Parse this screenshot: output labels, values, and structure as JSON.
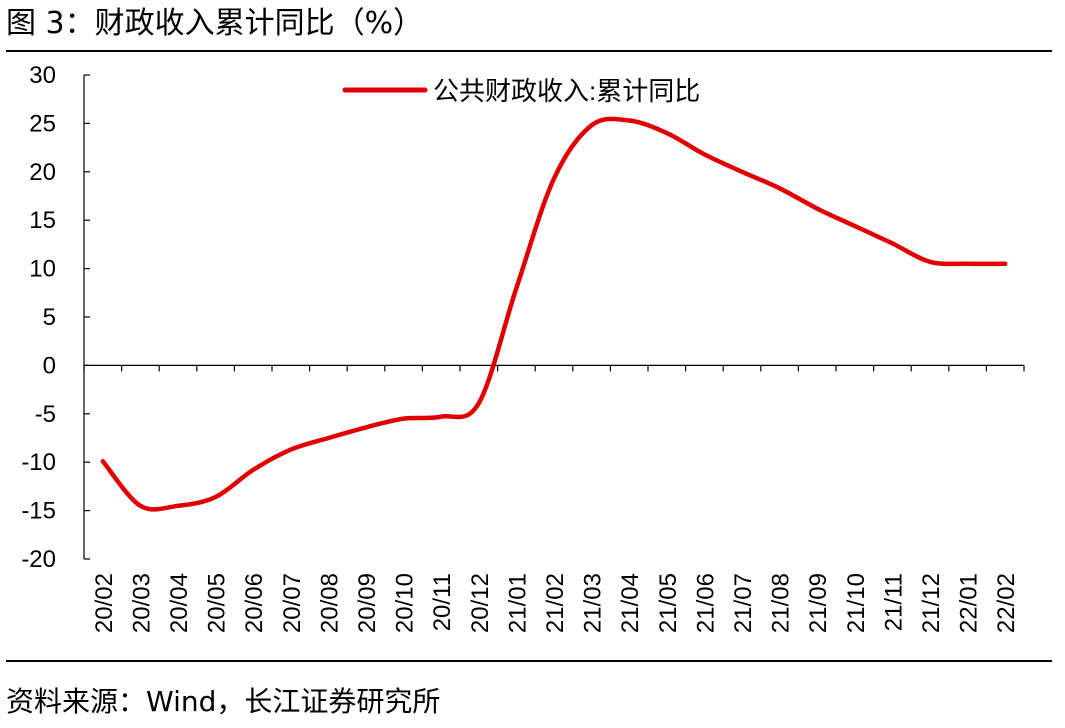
{
  "header": {
    "title": "图 3：财政收入累计同比（%）"
  },
  "footer": {
    "source": "资料来源：Wind，长江证券研究所"
  },
  "chart_data": {
    "type": "line",
    "title": "财政收入累计同比（%）",
    "xlabel": "",
    "ylabel": "%",
    "ylim": [
      -20,
      30
    ],
    "yticks": [
      30,
      25,
      20,
      15,
      10,
      5,
      0,
      -5,
      -10,
      -15,
      -20
    ],
    "categories": [
      "20/02",
      "20/03",
      "20/04",
      "20/05",
      "20/06",
      "20/07",
      "20/08",
      "20/09",
      "20/10",
      "20/11",
      "20/12",
      "21/01",
      "21/02",
      "21/03",
      "21/04",
      "21/05",
      "21/06",
      "21/07",
      "21/08",
      "21/09",
      "21/10",
      "21/11",
      "21/12",
      "22/01",
      "22/02"
    ],
    "legend_position": "top-center",
    "grid": false,
    "series": [
      {
        "name": "公共财政收入:累计同比",
        "color": "#e00000",
        "values": [
          -9.9,
          -14.5,
          -14.5,
          -13.6,
          -10.8,
          -8.7,
          -7.5,
          -6.4,
          -5.5,
          -5.3,
          -3.9,
          8.0,
          19.3,
          24.8,
          25.3,
          24.0,
          21.8,
          20.0,
          18.3,
          16.2,
          14.4,
          12.6,
          10.7,
          10.5,
          10.5
        ]
      }
    ]
  }
}
